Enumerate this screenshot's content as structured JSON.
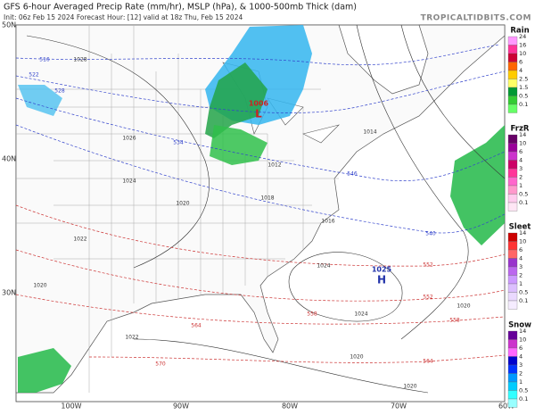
{
  "header": {
    "title": "GFS 6-hour Averaged Precip Rate (mm/hr), MSLP (hPa), & 1000-500mb Thick (dam)",
    "subtitle": "Init: 06z Feb 15 2024   Forecast Hour: [12]   valid at 18z Thu, Feb 15 2024",
    "site": "TROPICALTIDBITS.COM"
  },
  "axes": {
    "lat_labels": [
      "50N",
      "40N",
      "30N"
    ],
    "lon_labels": [
      "100W",
      "90W",
      "80W",
      "70W",
      "60W"
    ]
  },
  "colorbars": [
    {
      "title": "Rain",
      "labels": [
        "24",
        "16",
        "10",
        "6",
        "4",
        "2.5",
        "1.5",
        "0.5",
        "0.1"
      ],
      "colors": [
        "#ff99ff",
        "#ff3399",
        "#cc0033",
        "#ff6600",
        "#ffcc00",
        "#ffff66",
        "#009933",
        "#33cc33",
        "#66ff66"
      ]
    },
    {
      "title": "FrzR",
      "labels": [
        "14",
        "10",
        "6",
        "4",
        "3",
        "2",
        "1",
        "0.5",
        "0.1"
      ],
      "colors": [
        "#660066",
        "#990099",
        "#cc33cc",
        "#cc0066",
        "#ff3399",
        "#ff66cc",
        "#ff99cc",
        "#ffccee",
        "#ffe6f5"
      ]
    },
    {
      "title": "Sleet",
      "labels": [
        "14",
        "10",
        "6",
        "4",
        "3",
        "2",
        "1",
        "0.5",
        "0.1"
      ],
      "colors": [
        "#cc0000",
        "#ff3333",
        "#ff6666",
        "#9933cc",
        "#bb66ee",
        "#cc99ff",
        "#dcbfff",
        "#ead9ff",
        "#f5ecff"
      ]
    },
    {
      "title": "Snow",
      "labels": [
        "14",
        "10",
        "6",
        "4",
        "3",
        "2",
        "1",
        "0.5",
        "0.1"
      ],
      "colors": [
        "#660099",
        "#cc33cc",
        "#ff66ff",
        "#0000cc",
        "#0033ff",
        "#0099ff",
        "#00ccff",
        "#33ffff",
        "#99ffff"
      ]
    }
  ],
  "pressure_centers": [
    {
      "letter": "H",
      "value": "1025"
    },
    {
      "letter": "L",
      "value": "1006"
    }
  ],
  "isobar_labels": [
    "1028",
    "1026",
    "1024",
    "1020",
    "1022",
    "1020",
    "1022",
    "1018",
    "1012",
    "1014",
    "1016",
    "1024",
    "1024",
    "1020",
    "1020",
    "1020"
  ],
  "thickness_labels": [
    "516",
    "522",
    "528",
    "534",
    "540",
    "546",
    "552",
    "558",
    "564",
    "570",
    "564",
    "558",
    "552"
  ]
}
